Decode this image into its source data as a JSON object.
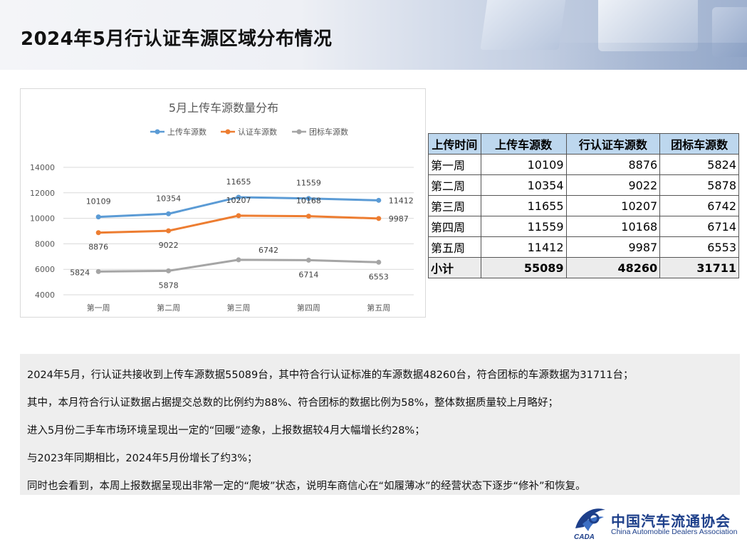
{
  "page": {
    "title": "2024年5月行认证车源区域分布情况"
  },
  "chart_data": {
    "type": "line",
    "title": "5月上传车源数量分布",
    "categories": [
      "第一周",
      "第二周",
      "第三周",
      "第四周",
      "第五周"
    ],
    "ylim": [
      4000,
      14000
    ],
    "yticks": [
      4000,
      6000,
      8000,
      10000,
      12000,
      14000
    ],
    "grid": true,
    "legend_position": "top",
    "series": [
      {
        "name": "上传车源数",
        "values": [
          10109,
          10354,
          11655,
          11559,
          11412
        ],
        "color": "#5b9bd5"
      },
      {
        "name": "认证车源数",
        "values": [
          8876,
          9022,
          10207,
          10168,
          9987
        ],
        "color": "#ed7d31"
      },
      {
        "name": "团标车源数",
        "values": [
          5824,
          5878,
          6742,
          6714,
          6553
        ],
        "color": "#a5a5a5"
      }
    ]
  },
  "table": {
    "headers": [
      "上传时间",
      "上传车源数",
      "行认证车源数",
      "团标车源数"
    ],
    "rows": [
      [
        "第一周",
        "10109",
        "8876",
        "5824"
      ],
      [
        "第二周",
        "10354",
        "9022",
        "5878"
      ],
      [
        "第三周",
        "11655",
        "10207",
        "6742"
      ],
      [
        "第四周",
        "11559",
        "10168",
        "6714"
      ],
      [
        "第五周",
        "11412",
        "9987",
        "6553"
      ]
    ],
    "subtotal": [
      "小计",
      "55089",
      "48260",
      "31711"
    ],
    "header_color": "#bdd7ee"
  },
  "summary": {
    "lines": [
      "2024年5月，行认证共接收到上传车源数据55089台，其中符合行认证标准的车源数据48260台，符合团标的车源数据为31711台；",
      "其中，本月符合行认证数据占据提交总数的比例约为88%、符合团标的数据比例为58%，整体数据质量较上月略好；",
      "进入5月份二手车市场环境呈现出一定的“回暖”迹象，上报数据较4月大幅增长约28%；",
      "与2023年同期相比，2024年5月份增长了约3%；",
      "同时也会看到，本周上报数据呈现出非常一定的“爬坡”状态，说明车商信心在“如履薄冰”的经营状态下逐步“修补”和恢复。"
    ]
  },
  "logo": {
    "name_cn": "中国汽车流通协会",
    "name_en": "China Automobile Dealers Association",
    "mark_text": "CADA",
    "color": "#1d3f8a"
  }
}
